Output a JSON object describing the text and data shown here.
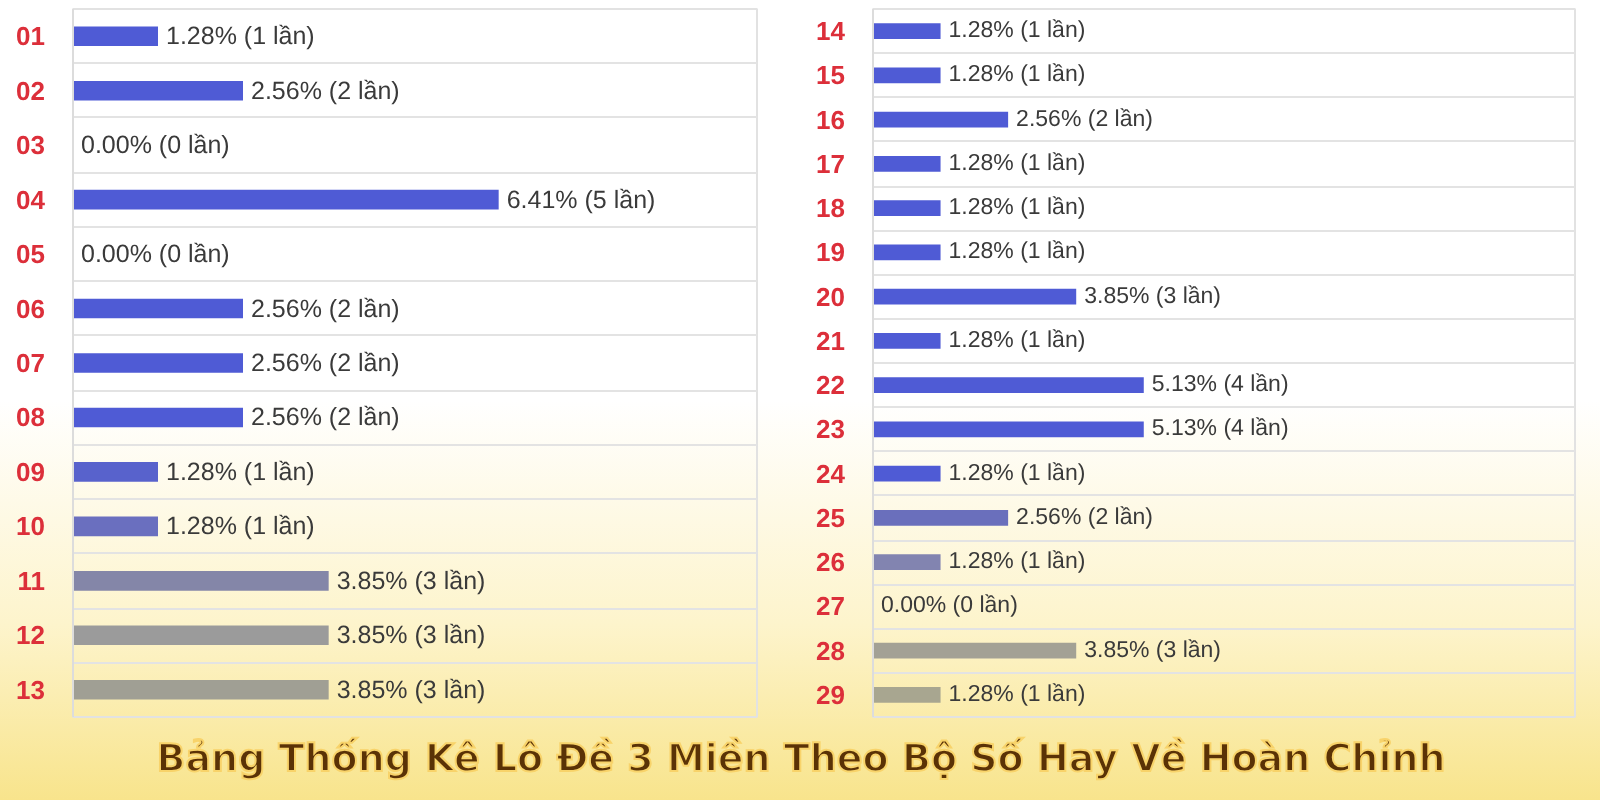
{
  "chart_data": [
    {
      "type": "bar",
      "orientation": "horizontal",
      "title": "Bảng Thống Kê Lô Đề 3 Miền Theo Bộ Số Hay Về Hoàn Chỉnh",
      "categories": [
        "01",
        "02",
        "03",
        "04",
        "05",
        "06",
        "07",
        "08",
        "09",
        "10",
        "11",
        "12",
        "13"
      ],
      "values": [
        1.28,
        2.56,
        0.0,
        6.41,
        0.0,
        2.56,
        2.56,
        2.56,
        1.28,
        1.28,
        3.85,
        3.85,
        3.85
      ],
      "value_labels": [
        "1.28% (1 lần)",
        "2.56% (2 lần)",
        "0.00% (0 lần)",
        "6.41% (5 lần)",
        "0.00% (0 lần)",
        "2.56% (2 lần)",
        "2.56% (2 lần)",
        "2.56% (2 lần)",
        "1.28% (1 lần)",
        "1.28% (1 lần)",
        "3.85% (3 lần)",
        "3.85% (3 lần)",
        "3.85% (3 lần)"
      ],
      "colors": [
        "#4f5bd5",
        "#4f5bd5",
        "#4f5bd5",
        "#4f5bd5",
        "#4f5bd5",
        "#4f5bd5",
        "#4f5bd5",
        "#4f5bd5",
        "#5862cc",
        "#6a6fbf",
        "#8486a8",
        "#9b9b9b",
        "#a09f94"
      ],
      "xlim": [
        0,
        10.3
      ],
      "grid": "y",
      "tick_labels": "y"
    },
    {
      "type": "bar",
      "orientation": "horizontal",
      "categories": [
        "14",
        "15",
        "16",
        "17",
        "18",
        "19",
        "20",
        "21",
        "22",
        "23",
        "24",
        "25",
        "26",
        "27",
        "28",
        "29"
      ],
      "values": [
        1.28,
        1.28,
        2.56,
        1.28,
        1.28,
        1.28,
        3.85,
        1.28,
        5.13,
        5.13,
        1.28,
        2.56,
        1.28,
        0.0,
        3.85,
        1.28
      ],
      "value_labels": [
        "1.28% (1 lần)",
        "1.28% (1 lần)",
        "2.56% (2 lần)",
        "1.28% (1 lần)",
        "1.28% (1 lần)",
        "1.28% (1 lần)",
        "3.85% (3 lần)",
        "1.28% (1 lần)",
        "5.13% (4 lần)",
        "5.13% (4 lần)",
        "1.28% (1 lần)",
        "2.56% (2 lần)",
        "1.28% (1 lần)",
        "0.00% (0 lần)",
        "3.85% (3 lần)",
        "1.28% (1 lần)"
      ],
      "colors": [
        "#4f5bd5",
        "#4f5bd5",
        "#4f5bd5",
        "#4f5bd5",
        "#4f5bd5",
        "#4f5bd5",
        "#4f5bd5",
        "#4f5bd5",
        "#4f5bd5",
        "#4f5bd5",
        "#4f5bd5",
        "#6a6fbc",
        "#8284b0",
        "#8284b0",
        "#a3a195",
        "#a8a690"
      ],
      "xlim": [
        0,
        13.3
      ],
      "grid": "y",
      "tick_labels": "y"
    }
  ]
}
